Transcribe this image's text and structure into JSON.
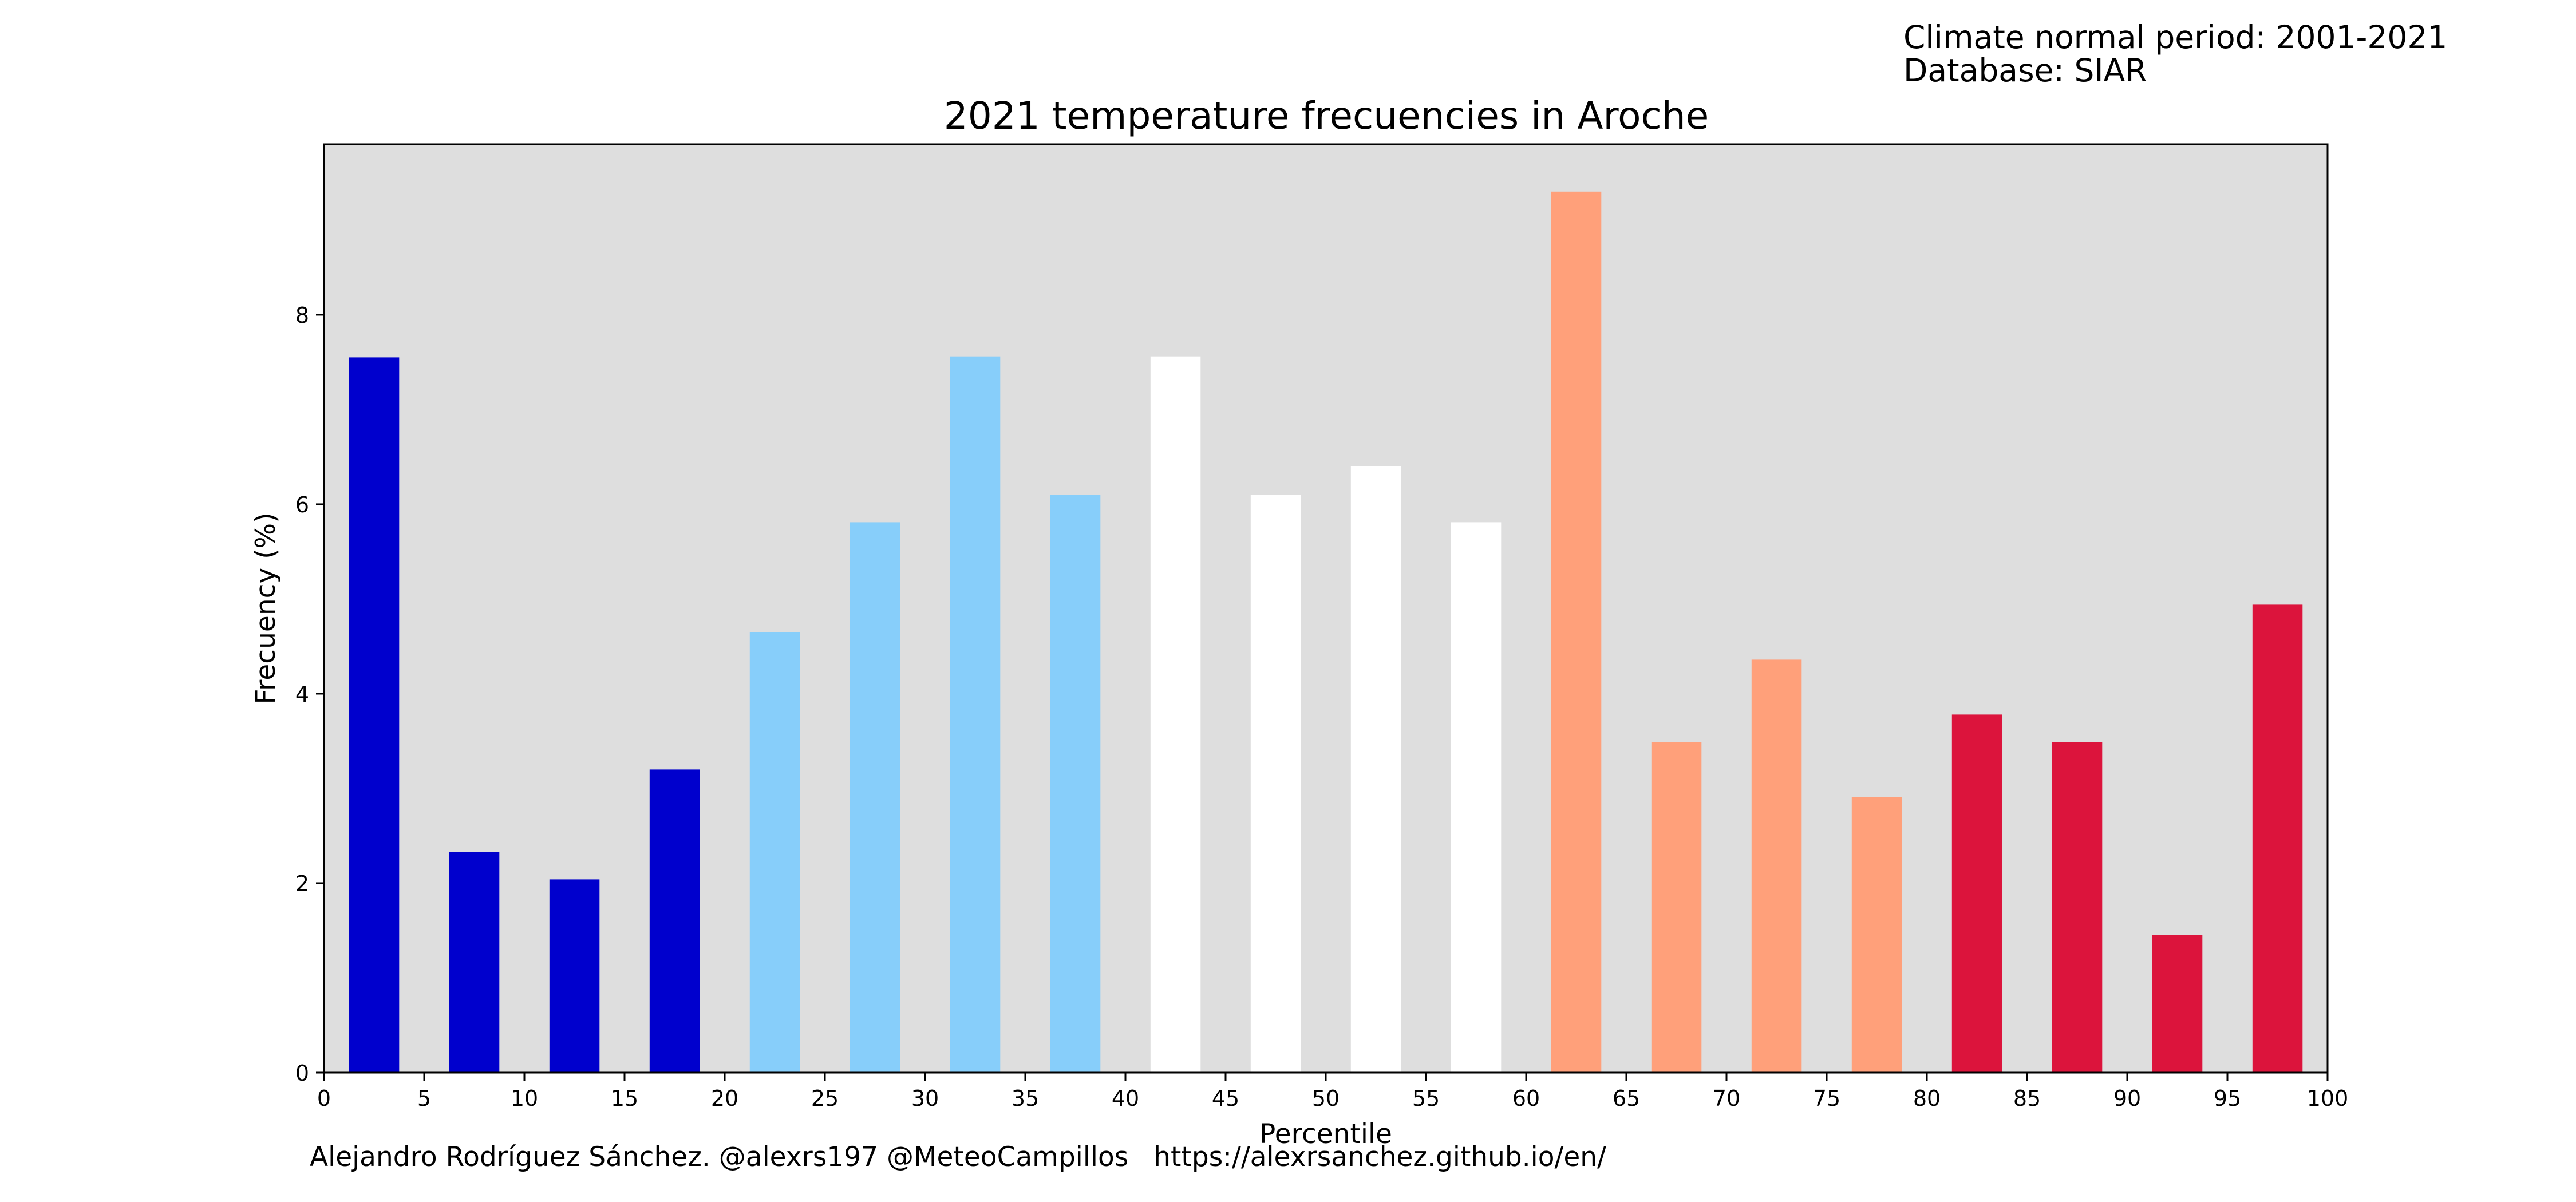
{
  "meta": {
    "period": "Climate normal period: 2001-2021",
    "database": "Database: SIAR"
  },
  "credit": {
    "author": "Alejandro Rodríguez Sánchez. @alexrs197 @MeteoCampillos",
    "url": "https://alexrsanchez.github.io/en/"
  },
  "colors": {
    "plot_bg": "#dedede",
    "band_1": "#0000cd",
    "band_2": "#87cefa",
    "band_3": "#ffffff",
    "band_4": "#ffa07a",
    "band_5": "#dc143c"
  },
  "chart_data": {
    "type": "bar",
    "title": "2021 temperature frecuencies in Aroche",
    "xlabel": "Percentile",
    "ylabel": "Frecuency (%)",
    "xlim": [
      0,
      100
    ],
    "ylim": [
      0,
      9.8
    ],
    "x": [
      2.5,
      7.5,
      12.5,
      17.5,
      22.5,
      27.5,
      32.5,
      37.5,
      42.5,
      47.5,
      52.5,
      57.5,
      62.5,
      67.5,
      72.5,
      77.5,
      82.5,
      87.5,
      92.5,
      97.5
    ],
    "values": [
      7.55,
      2.33,
      2.04,
      3.2,
      4.65,
      5.81,
      7.56,
      6.1,
      7.56,
      6.1,
      6.4,
      5.81,
      9.3,
      3.49,
      4.36,
      2.91,
      3.78,
      3.49,
      1.45,
      4.94
    ],
    "bar_colors": [
      "#0000cd",
      "#0000cd",
      "#0000cd",
      "#0000cd",
      "#87cefa",
      "#87cefa",
      "#87cefa",
      "#87cefa",
      "#ffffff",
      "#ffffff",
      "#ffffff",
      "#ffffff",
      "#ffa07a",
      "#ffa07a",
      "#ffa07a",
      "#ffa07a",
      "#dc143c",
      "#dc143c",
      "#dc143c",
      "#dc143c"
    ],
    "xticks": [
      "0",
      "5",
      "10",
      "15",
      "20",
      "25",
      "30",
      "35",
      "40",
      "45",
      "50",
      "55",
      "60",
      "65",
      "70",
      "75",
      "80",
      "85",
      "90",
      "95",
      "100"
    ],
    "yticks": [
      "0",
      "2",
      "4",
      "6",
      "8"
    ],
    "grid": false,
    "legend": "none"
  }
}
